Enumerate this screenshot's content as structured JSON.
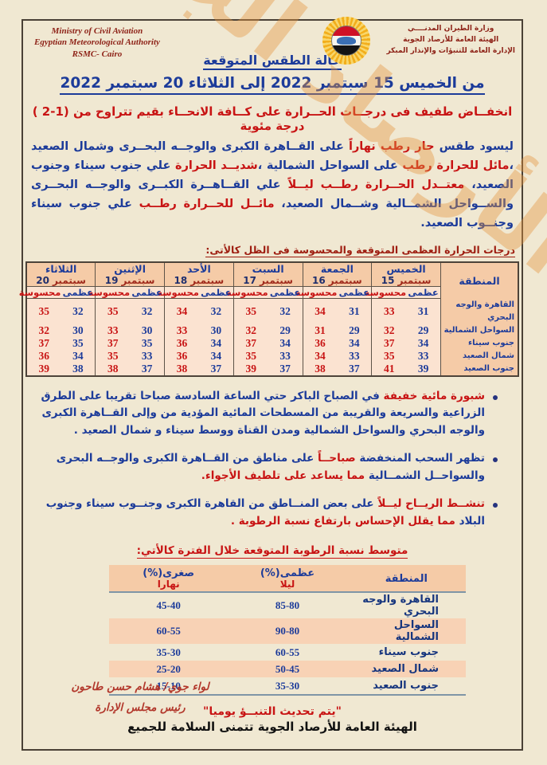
{
  "colors": {
    "accent_blue": "#1c3b9a",
    "accent_red": "#c81414",
    "maroon": "#8e2318",
    "table_header_bg": "#f5cba7",
    "table_data_bg": "#fbe3d1",
    "humidity_alt_row_bg": "#f8d2b5",
    "watermark_orange": "#e6953e"
  },
  "header": {
    "english_lines": [
      "Ministry of Civil Aviation",
      "Egyptian Meteorological Authority",
      "RSMC- Cairo"
    ],
    "arabic_lines": [
      "وزارة الطيران المدنــــي",
      "الهيئة العامة للأرصاد الجوية",
      "الإدارة العامة للتنبؤات والإنذار المبكر"
    ],
    "logo": "sun-emblem-with-egypt-flag-icon",
    "title": "حالة الطقس المتوقعة",
    "date_range": "من  الخميس 15 سبتمبر  2022  إلى الثلاثاء 20 سبتمبر 2022"
  },
  "headline": "انخفــاض طفيف فى درجــات الحــرارة على كــافة الانحــاء بقيم تتراوح من (1-2 ) درجة مئوية",
  "forecast": [
    {
      "t": "ليسود طقس ",
      "c": "b"
    },
    {
      "t": "حار رطب نهاراً ",
      "c": "r"
    },
    {
      "t": "على القــاهرة الكبرى والوجــه البحــرى وشمال الصعيد ،",
      "c": "b"
    },
    {
      "t": "مائل للحرارة رطب ",
      "c": "r"
    },
    {
      "t": "على السواحل الشمالية ،",
      "c": "b"
    },
    {
      "t": "شديــد الحرارة ",
      "c": "r"
    },
    {
      "t": "علي جنوب سيناء وجنوب الصعيد، ",
      "c": "b"
    },
    {
      "t": "معتــدل الحــرارة رطــب ليــلاً ",
      "c": "r"
    },
    {
      "t": "علي القــاهــرة الكبــرى والوجــه البحــرى والســواحل الشمــالية وشــمال الصعيد، ",
      "c": "b"
    },
    {
      "t": "مائــل للحــرارة رطــب ",
      "c": "r"
    },
    {
      "t": "علي جنوب سيناء وجنــوب الصعيد.",
      "c": "b"
    }
  ],
  "temp_table": {
    "title": "درجات الحرارة العظمى المتوقعة والمحسوسة فى الظل كالأتى:",
    "region_header": "المنطقة",
    "max_label": "عظمى",
    "felt_label": "محسوسة",
    "days": [
      {
        "name": "الخميس",
        "date": "15",
        "month": "سبتمبر"
      },
      {
        "name": "الجمعة",
        "date": "16",
        "month": "سبتمبر"
      },
      {
        "name": "السبت",
        "date": "17",
        "month": "سبتمبر"
      },
      {
        "name": "الأحد",
        "date": "18",
        "month": "سبتمبر"
      },
      {
        "name": "الإثنين",
        "date": "19",
        "month": "سبتمبر"
      },
      {
        "name": "الثلاثاء",
        "date": "20",
        "month": "سبتمبر"
      }
    ],
    "rows": [
      {
        "region": "القاهرة والوجه البحري",
        "values": [
          [
            31,
            33
          ],
          [
            31,
            34
          ],
          [
            32,
            35
          ],
          [
            32,
            34
          ],
          [
            32,
            35
          ],
          [
            32,
            35
          ]
        ]
      },
      {
        "region": "السواحل الشمالية",
        "values": [
          [
            29,
            32
          ],
          [
            29,
            31
          ],
          [
            29,
            32
          ],
          [
            30,
            33
          ],
          [
            30,
            33
          ],
          [
            30,
            32
          ]
        ]
      },
      {
        "region": "جنوب سيناء",
        "values": [
          [
            34,
            37
          ],
          [
            34,
            36
          ],
          [
            34,
            37
          ],
          [
            34,
            36
          ],
          [
            35,
            37
          ],
          [
            35,
            37
          ]
        ]
      },
      {
        "region": "شمال الصعيد",
        "values": [
          [
            33,
            35
          ],
          [
            33,
            34
          ],
          [
            33,
            35
          ],
          [
            34,
            36
          ],
          [
            33,
            35
          ],
          [
            34,
            36
          ]
        ]
      },
      {
        "region": "جنوب الصعيد",
        "values": [
          [
            39,
            41
          ],
          [
            37,
            38
          ],
          [
            37,
            39
          ],
          [
            37,
            38
          ],
          [
            37,
            38
          ],
          [
            38,
            39
          ]
        ]
      }
    ]
  },
  "bullets": [
    [
      {
        "t": "شبورة مائية خفيفة ",
        "c": "r"
      },
      {
        "t": "في الصباح الباكر حتي الساعة السادسة صباحا تقريبا على الطرق الزراعية والسريعة والقريبة من المسطحات المائية المؤدية من وإلى القــاهرة الكبرى والوجه البحري والسواحل الشمالية ومدن القناة ووسط سيناء و شمال الصعيد .",
        "c": "b"
      }
    ],
    [
      {
        "t": "تظهر السحب المنخفضة ",
        "c": "b"
      },
      {
        "t": "صباحــاً ",
        "c": "r"
      },
      {
        "t": "على مناطق من القــاهرة الكبرى والوجــه البحرى والسواحــل الشمــالية ",
        "c": "b"
      },
      {
        "t": "مما يساعد على تلطيف الأجواء.",
        "c": "r"
      }
    ],
    [
      {
        "t": "تنشــط الريــاح ليــلاً ",
        "c": "r"
      },
      {
        "t": "على بعض المنــاطق من القاهرة الكبرى وجنــوب سيناء وجنوب البلاد ",
        "c": "b"
      },
      {
        "t": "مما يقلل الإحساس بارتفاع نسبة الرطوبة .",
        "c": "r"
      }
    ]
  ],
  "humidity_table": {
    "title": "متوسط نسبة الرطوبة المتوقعة خلال الفترة كالأتي:",
    "region_header": "المنطقة",
    "max_header": "عظمى(%)",
    "max_sub": "ليلا",
    "min_header": "صغرى(%)",
    "min_sub": "نهارا",
    "rows": [
      {
        "region": "القاهرة والوجه البحري",
        "night": "85-80",
        "day": "45-40"
      },
      {
        "region": "السواحل الشمالية",
        "night": "90-80",
        "day": "60-55"
      },
      {
        "region": "جنوب سيناء",
        "night": "60-55",
        "day": "35-30"
      },
      {
        "region": "شمال الصعيد",
        "night": "50-45",
        "day": "25-20"
      },
      {
        "region": "جنوب الصعيد",
        "night": "35-30",
        "day": "15-10"
      }
    ]
  },
  "footer": {
    "update_note": "\"يتم تحديث التنبــؤ يوميا\"",
    "wish_line": "الهيئة العامة للأرصاد الجوية تتمنى السلامة للجميع",
    "signature_name": "لواء جوي/ هشام حسن طاحون",
    "signature_title": "رئيس مجلس الإدارة"
  },
  "watermark_text": "الأرصاد الجوية"
}
